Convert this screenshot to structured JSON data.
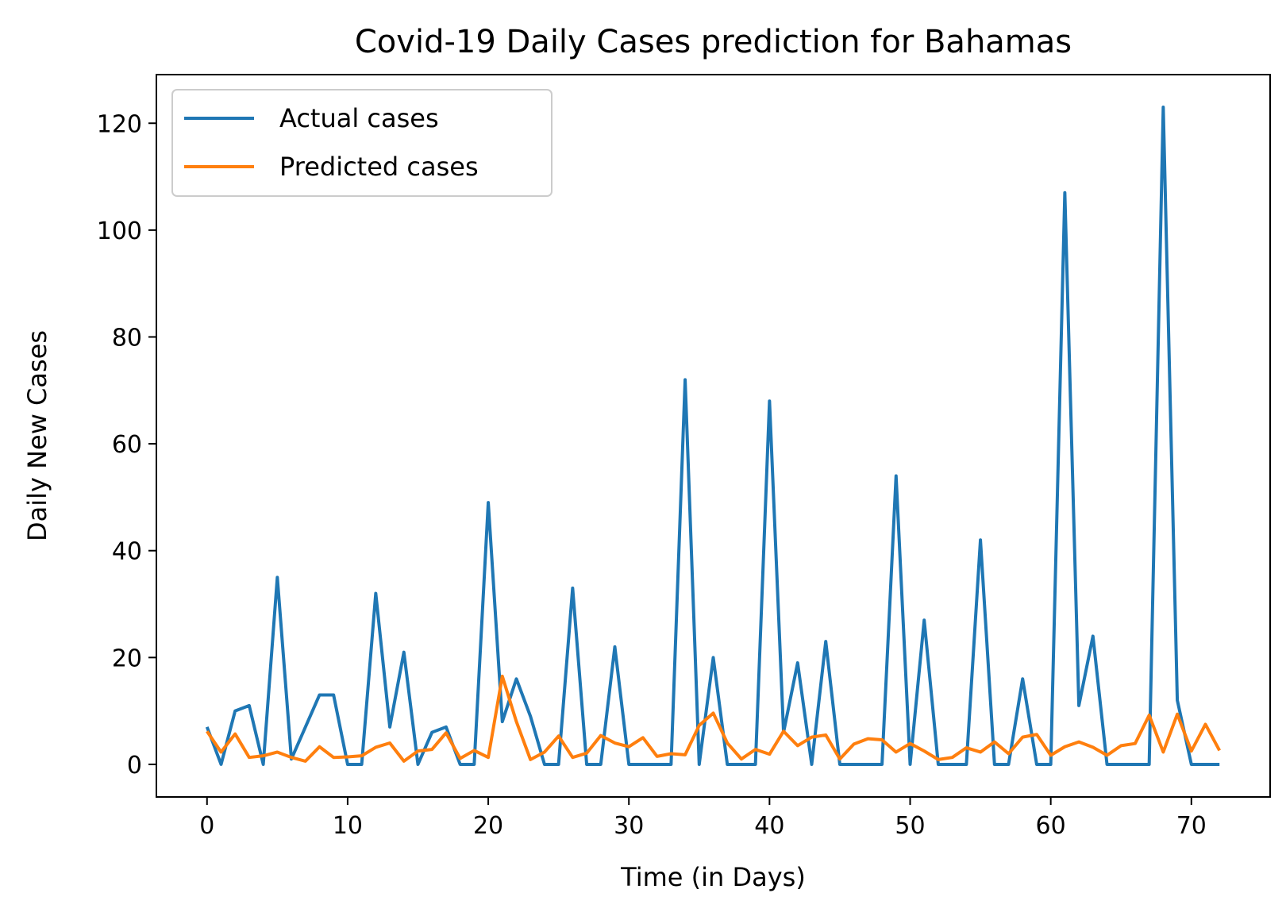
{
  "chart_data": {
    "type": "line",
    "title": "Covid-19 Daily Cases prediction for Bahamas",
    "xlabel": "Time (in Days)",
    "ylabel": "Daily New Cases",
    "xlim": [
      -3.6,
      75.6
    ],
    "ylim": [
      -6.1,
      129.1
    ],
    "xticks": [
      0,
      10,
      20,
      30,
      40,
      50,
      60,
      70
    ],
    "yticks": [
      0,
      20,
      40,
      60,
      80,
      100,
      120
    ],
    "grid": false,
    "legend_position": "top-left",
    "x": [
      0,
      1,
      2,
      3,
      4,
      5,
      6,
      7,
      8,
      9,
      10,
      11,
      12,
      13,
      14,
      15,
      16,
      17,
      18,
      19,
      20,
      21,
      22,
      23,
      24,
      25,
      26,
      27,
      28,
      29,
      30,
      31,
      32,
      33,
      34,
      35,
      36,
      37,
      38,
      39,
      40,
      41,
      42,
      43,
      44,
      45,
      46,
      47,
      48,
      49,
      50,
      51,
      52,
      53,
      54,
      55,
      56,
      57,
      58,
      59,
      60,
      61,
      62,
      63,
      64,
      65,
      66,
      67,
      68,
      69,
      70,
      71,
      72
    ],
    "series": [
      {
        "name": "Actual cases",
        "color": "#1f77b4",
        "values": [
          7,
          0,
          10,
          11,
          0,
          35,
          1,
          7,
          13,
          13,
          0,
          0,
          32,
          7,
          21,
          0,
          6,
          7,
          0,
          0,
          49,
          8,
          16,
          9,
          0,
          0,
          33,
          0,
          0,
          22,
          0,
          0,
          0,
          0,
          72,
          0,
          20,
          0,
          0,
          0,
          68,
          6,
          19,
          0,
          23,
          0,
          0,
          0,
          0,
          54,
          0,
          27,
          0,
          0,
          0,
          42,
          0,
          0,
          16,
          0,
          0,
          107,
          11,
          24,
          0,
          0,
          0,
          0,
          123,
          12,
          0,
          0,
          0
        ]
      },
      {
        "name": "Predicted cases",
        "color": "#ff7f0e",
        "values": [
          6.2,
          2.3,
          5.7,
          1.3,
          1.6,
          2.3,
          1.3,
          0.6,
          3.3,
          1.3,
          1.4,
          1.6,
          3.2,
          4,
          0.6,
          2.5,
          2.8,
          5.9,
          1.1,
          2.6,
          1.3,
          16.5,
          8,
          0.9,
          2.3,
          5.3,
          1.3,
          2.1,
          5.4,
          4,
          3.3,
          5,
          1.5,
          2,
          1.8,
          7.3,
          9.6,
          4,
          1,
          2.8,
          1.9,
          6.2,
          3.5,
          5.1,
          5.5,
          1,
          3.8,
          4.8,
          4.6,
          2.3,
          3.9,
          2.5,
          0.9,
          1.3,
          3.1,
          2.3,
          4.2,
          2,
          5.1,
          5.6,
          1.7,
          3.3,
          4.2,
          3.2,
          1.7,
          3.5,
          3.9,
          9.2,
          2.3,
          9.4,
          2.5,
          7.5,
          2.6
        ]
      }
    ]
  }
}
